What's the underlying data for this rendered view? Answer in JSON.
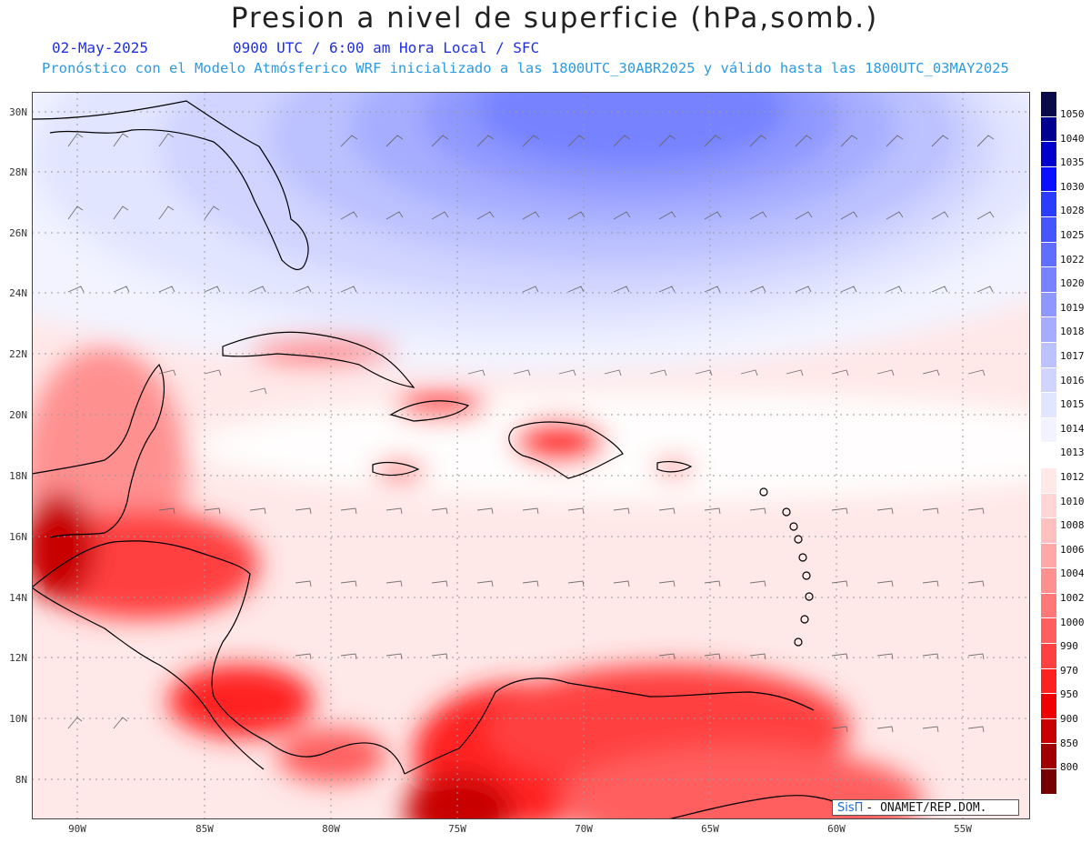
{
  "header": {
    "title": "Presion a nivel de superficie (hPa,somb.)",
    "date": "02-May-2025",
    "time": "0900 UTC / 6:00 am Hora Local / SFC",
    "forecast": "Pronóstico con el Modelo Atmósferico WRF inicializado a las 1800UTC_30ABR2025 y válido hasta las  1800UTC_03MAY2025"
  },
  "lat_labels": [
    "30N",
    "28N",
    "26N",
    "24N",
    "22N",
    "20N",
    "18N",
    "16N",
    "14N",
    "12N",
    "10N",
    "8N"
  ],
  "lon_labels": [
    "90W",
    "85W",
    "80W",
    "75W",
    "70W",
    "65W",
    "60W",
    "55W"
  ],
  "colorbar": {
    "levels": [
      "1050",
      "1040",
      "1035",
      "1030",
      "1028",
      "1025",
      "1022",
      "1020",
      "1019",
      "1018",
      "1017",
      "1016",
      "1015",
      "1014",
      "1013",
      "1012",
      "1010",
      "1008",
      "1006",
      "1004",
      "1002",
      "1000",
      "990",
      "970",
      "950",
      "900",
      "850",
      "800"
    ],
    "colors": [
      "#0a0a4a",
      "#000090",
      "#0000cc",
      "#0a10ff",
      "#2a3cff",
      "#4656ff",
      "#5f6eff",
      "#7682ff",
      "#8f98ff",
      "#a6adff",
      "#bcc1ff",
      "#d0d4ff",
      "#e2e5ff",
      "#f2f3ff",
      "#ffffff",
      "#ffe8e8",
      "#ffd5d5",
      "#ffc0c0",
      "#ffa8a8",
      "#ff9090",
      "#ff7878",
      "#ff5e5e",
      "#ff4040",
      "#ff2020",
      "#f00000",
      "#c80000",
      "#a00000",
      "#760000"
    ]
  },
  "credit": {
    "logo": "SisΠ",
    "text": "- ONAMET/REP.DOM."
  },
  "lat_cell": 1,
  "lon_cell": 1
}
